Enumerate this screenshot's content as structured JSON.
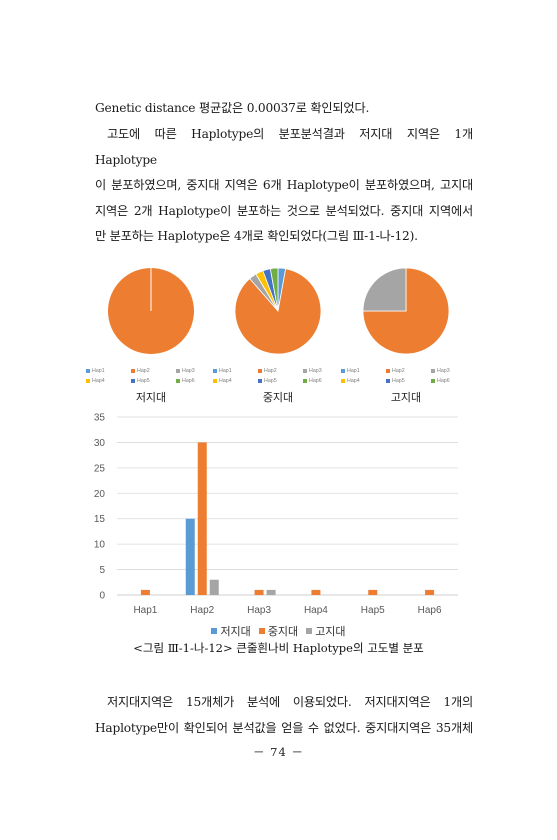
{
  "text": {
    "line_genetic": "Genetic distance 평균값은 0.00037로 확인되었다.",
    "para1_lines": [
      "고도에 따른 Haplotype의 분포분석결과 저지대 지역은 1개 Haplotype",
      "이 분포하였으며, 중지대 지역은 6개 Haplotype이 분포하였으며, 고지대",
      "지역은 2개 Haplotype이 분포하는 것으로 분석되었다. 중지대 지역에서",
      "만 분포하는 Haplotype은 4개로 확인되었다(그림 Ⅲ-1-나-12)."
    ],
    "para2_lines": [
      "저지대지역은 15개체가 분석에 이용되었다. 저지대지역은 1개의",
      "Haplotype만이 확인되어 분석값을 얻을 수 없었다. 중지대지역은 35개체"
    ]
  },
  "figure": {
    "caption": "<그림 Ⅲ-1-나-12> 큰줄흰나비 Haplotype의 고도별 분포"
  },
  "colors": {
    "Hap1": "#5b9bd5",
    "Hap2": "#ed7d31",
    "Hap3": "#a5a5a5",
    "Hap4": "#ffc000",
    "Hap5": "#4472c4",
    "Hap6": "#70ad47"
  },
  "chart_data": [
    {
      "type": "pie",
      "label": "저지대",
      "legend": [
        "Hap1",
        "Hap2",
        "Hap3",
        "Hap4",
        "Hap5",
        "Hap6"
      ],
      "values": [
        0,
        15,
        0,
        0,
        0,
        0
      ]
    },
    {
      "type": "pie",
      "label": "중지대",
      "legend": [
        "Hap1",
        "Hap2",
        "Hap3",
        "Hap4",
        "Hap5",
        "Hap6"
      ],
      "values": [
        1,
        30,
        1,
        1,
        1,
        1
      ]
    },
    {
      "type": "pie",
      "label": "고지대",
      "legend": [
        "Hap1",
        "Hap2",
        "Hap3",
        "Hap4",
        "Hap5",
        "Hap6"
      ],
      "values": [
        0,
        3,
        1,
        0,
        0,
        0
      ]
    },
    {
      "type": "bar",
      "categories": [
        "Hap1",
        "Hap2",
        "Hap3",
        "Hap4",
        "Hap5",
        "Hap6"
      ],
      "series": [
        {
          "name": "저지대",
          "color": "#5b9bd5",
          "values": [
            0,
            15,
            0,
            0,
            0,
            0
          ]
        },
        {
          "name": "중지대",
          "color": "#ed7d31",
          "values": [
            1,
            30,
            1,
            1,
            1,
            1
          ]
        },
        {
          "name": "고지대",
          "color": "#a5a5a5",
          "values": [
            0,
            3,
            1,
            0,
            0,
            0
          ]
        }
      ],
      "ylim": [
        0,
        35
      ],
      "yticks": [
        0,
        5,
        10,
        15,
        20,
        25,
        30,
        35
      ],
      "grid": true,
      "legend_position": "bottom"
    }
  ],
  "page_number": "－ 74 －"
}
